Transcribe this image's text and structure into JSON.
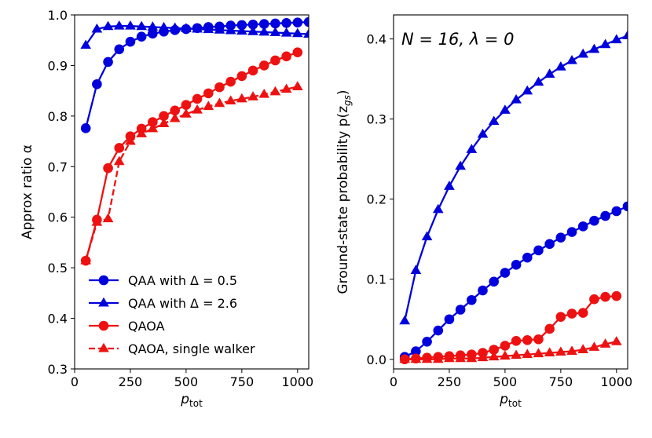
{
  "chart_data": [
    {
      "type": "line",
      "xlabel": "p",
      "xlabel_sub": "tot",
      "ylabel": "Approx ratio α",
      "xlim": [
        0,
        1050
      ],
      "ylim": [
        0.3,
        1.0
      ],
      "xticks": [
        0,
        250,
        500,
        750,
        1000
      ],
      "yticks": [
        0.3,
        0.4,
        0.5,
        0.6,
        0.7,
        0.8,
        0.9,
        1.0
      ],
      "ytick_labels": [
        "0.3",
        "0.4",
        "0.5",
        "0.6",
        "0.7",
        "0.8",
        "0.9",
        "1.0"
      ],
      "legend_position": "lower-left",
      "series": [
        {
          "name": "QAA with Δ = 0.5",
          "color": "#0000dd",
          "marker": "circle",
          "line": "solid",
          "x": [
            50,
            100,
            150,
            200,
            250,
            300,
            350,
            400,
            450,
            500,
            550,
            600,
            650,
            700,
            750,
            800,
            850,
            900,
            950,
            1000,
            1050
          ],
          "y": [
            0.776,
            0.863,
            0.907,
            0.932,
            0.947,
            0.957,
            0.963,
            0.967,
            0.97,
            0.972,
            0.974,
            0.976,
            0.977,
            0.979,
            0.98,
            0.981,
            0.982,
            0.983,
            0.984,
            0.985,
            0.986
          ]
        },
        {
          "name": "QAA with Δ = 2.6",
          "color": "#0000dd",
          "marker": "triangle",
          "line": "solid",
          "x": [
            50,
            100,
            150,
            200,
            250,
            300,
            350,
            400,
            450,
            500,
            550,
            600,
            650,
            700,
            750,
            800,
            850,
            900,
            950,
            1000,
            1050
          ],
          "y": [
            0.94,
            0.972,
            0.977,
            0.978,
            0.978,
            0.977,
            0.976,
            0.975,
            0.974,
            0.973,
            0.972,
            0.971,
            0.97,
            0.969,
            0.968,
            0.967,
            0.966,
            0.965,
            0.964,
            0.963,
            0.962
          ]
        },
        {
          "name": "QAOA",
          "color": "#ee1111",
          "marker": "circle",
          "line": "solid",
          "x": [
            50,
            100,
            150,
            200,
            250,
            300,
            350,
            400,
            450,
            500,
            550,
            600,
            650,
            700,
            750,
            800,
            850,
            900,
            950,
            1000
          ],
          "y": [
            0.514,
            0.595,
            0.697,
            0.737,
            0.76,
            0.775,
            0.788,
            0.8,
            0.811,
            0.822,
            0.834,
            0.845,
            0.857,
            0.868,
            0.879,
            0.89,
            0.9,
            0.91,
            0.918,
            0.926
          ]
        },
        {
          "name": "QAOA, single walker",
          "color": "#ee1111",
          "marker": "triangle",
          "line": "dashed",
          "x": [
            50,
            100,
            150,
            200,
            250,
            300,
            350,
            400,
            450,
            500,
            550,
            600,
            650,
            700,
            750,
            800,
            850,
            900,
            950,
            1000
          ],
          "y": [
            0.514,
            0.59,
            0.597,
            0.71,
            0.75,
            0.765,
            0.775,
            0.785,
            0.795,
            0.804,
            0.812,
            0.819,
            0.825,
            0.83,
            0.834,
            0.838,
            0.843,
            0.848,
            0.853,
            0.858
          ]
        }
      ]
    },
    {
      "type": "line",
      "xlabel": "p",
      "xlabel_sub": "tot",
      "ylabel": "Ground-state probability p(z",
      "ylabel_sub": "gs",
      "ylabel_end": ")",
      "annotation": "N = 16,  λ = 0",
      "xlim": [
        0,
        1050
      ],
      "ylim": [
        -0.012,
        0.43
      ],
      "xticks": [
        0,
        250,
        500,
        750,
        1000
      ],
      "yticks": [
        0.0,
        0.1,
        0.2,
        0.3,
        0.4
      ],
      "ytick_labels": [
        "0.0",
        "0.1",
        "0.2",
        "0.3",
        "0.4"
      ],
      "series": [
        {
          "name": "QAA with Δ = 0.5",
          "color": "#0000dd",
          "marker": "circle",
          "line": "solid",
          "x": [
            50,
            100,
            150,
            200,
            250,
            300,
            350,
            400,
            450,
            500,
            550,
            600,
            650,
            700,
            750,
            800,
            850,
            900,
            950,
            1000,
            1050
          ],
          "y": [
            0.003,
            0.01,
            0.022,
            0.036,
            0.05,
            0.062,
            0.074,
            0.086,
            0.097,
            0.108,
            0.118,
            0.127,
            0.136,
            0.144,
            0.152,
            0.159,
            0.166,
            0.173,
            0.179,
            0.185,
            0.191
          ]
        },
        {
          "name": "QAA with Δ = 2.6",
          "color": "#0000dd",
          "marker": "triangle",
          "line": "solid",
          "x": [
            50,
            100,
            150,
            200,
            250,
            300,
            350,
            400,
            450,
            500,
            550,
            600,
            650,
            700,
            750,
            800,
            850,
            900,
            950,
            1000,
            1050
          ],
          "y": [
            0.048,
            0.111,
            0.153,
            0.187,
            0.216,
            0.241,
            0.262,
            0.281,
            0.297,
            0.311,
            0.324,
            0.335,
            0.346,
            0.356,
            0.365,
            0.373,
            0.381,
            0.387,
            0.393,
            0.399,
            0.404
          ]
        },
        {
          "name": "QAOA",
          "color": "#ee1111",
          "marker": "circle",
          "line": "solid",
          "x": [
            50,
            100,
            150,
            200,
            250,
            300,
            350,
            400,
            450,
            500,
            550,
            600,
            650,
            700,
            750,
            800,
            850,
            900,
            950,
            1000
          ],
          "y": [
            0.0,
            0.001,
            0.002,
            0.003,
            0.004,
            0.005,
            0.006,
            0.008,
            0.012,
            0.017,
            0.023,
            0.024,
            0.025,
            0.038,
            0.053,
            0.057,
            0.058,
            0.075,
            0.078,
            0.079
          ]
        },
        {
          "name": "QAOA, single walker",
          "color": "#ee1111",
          "marker": "triangle",
          "line": "solid",
          "x": [
            50,
            100,
            150,
            200,
            250,
            300,
            350,
            400,
            450,
            500,
            550,
            600,
            650,
            700,
            750,
            800,
            850,
            900,
            950,
            1000
          ],
          "y": [
            0.0,
            0.0,
            0.0,
            0.0,
            0.001,
            0.001,
            0.001,
            0.002,
            0.003,
            0.004,
            0.005,
            0.006,
            0.007,
            0.008,
            0.009,
            0.01,
            0.012,
            0.015,
            0.019,
            0.022
          ]
        }
      ]
    }
  ]
}
